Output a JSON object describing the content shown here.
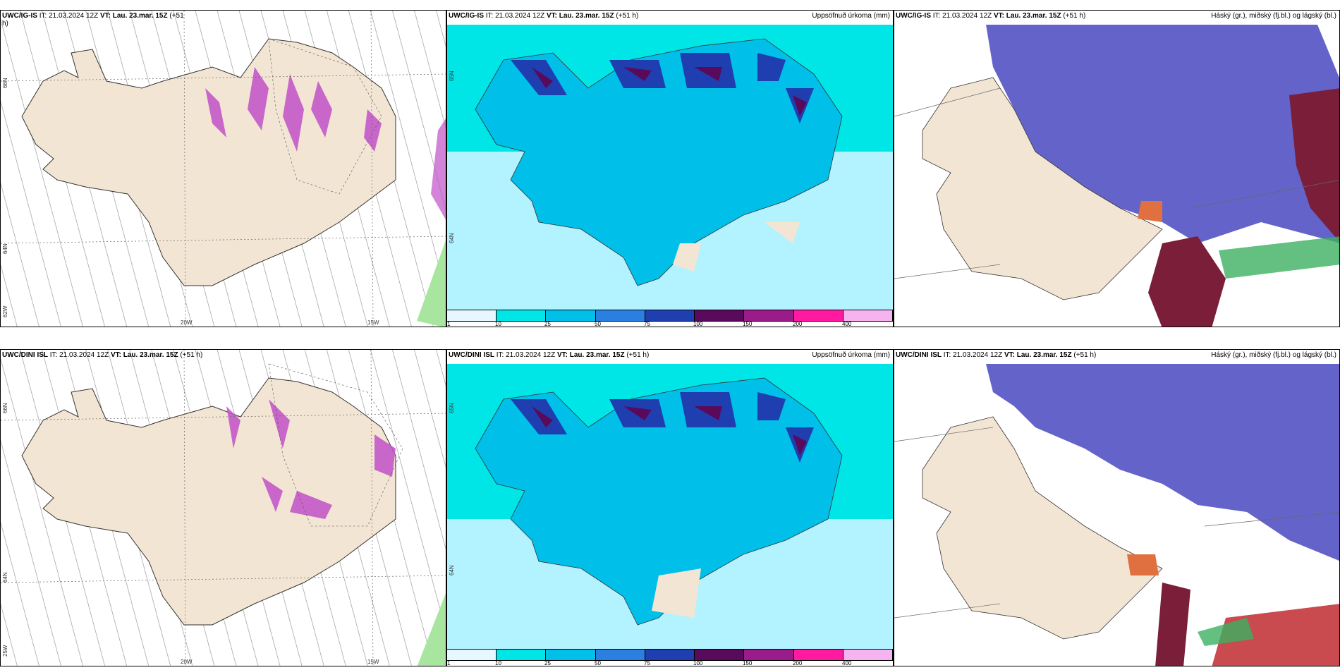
{
  "rows": [
    {
      "model": "UWC/IG-IS",
      "precip_type": {
        "title_model": "UWC/IG-IS",
        "title_rest": " IT: 21.03.2024 12Z ",
        "title_vt_label": "VT: Lau. 23.mar. 15Z",
        "title_suffix": " (+51",
        "title_suffix2": "h)",
        "lat_labels": [
          "66N",
          "64N",
          "62W"
        ],
        "lon_labels": [
          "20W",
          "15W"
        ]
      },
      "accum": {
        "title_model": "UWC/IG-IS",
        "title_rest": " IT: 21.03.2024 12Z ",
        "title_vt_label": "VT: Lau. 23.mar. 15Z",
        "title_suffix": " (+51 h)",
        "title_right": "Uppsöfnuð úrkoma (mm)",
        "lat_labels": [
          "65N",
          "64N"
        ]
      },
      "cloud": {
        "title_model": "UWC/IG-IS",
        "title_rest": " IT: 21.03.2024 12Z ",
        "title_vt_label": "VT: Lau. 23.mar. 15Z",
        "title_suffix": " (+51 h)",
        "title_right": "Háský (gr.), miðský (fj.bl.) og lágský (bl.)"
      }
    },
    {
      "model": "UWC/DINI ISL",
      "precip_type": {
        "title_model": "UWC/DINI ISL",
        "title_rest": " IT: 21.03.2024 12Z ",
        "title_vt_label": "VT: Lau. 23.mar. 15Z",
        "title_suffix": " (+51 h)",
        "title_suffix2": "",
        "lat_labels": [
          "66N",
          "64N",
          "25W"
        ],
        "lon_labels": [
          "20W",
          "15W"
        ]
      },
      "accum": {
        "title_model": "UWC/DINI ISL",
        "title_rest": " IT: 21.03.2024 12Z ",
        "title_vt_label": "VT: Lau. 23.mar. 15Z",
        "title_suffix": " (+51 h)",
        "title_right": "Uppsöfnuð úrkoma (mm)",
        "lat_labels": [
          "65N",
          "64N"
        ]
      },
      "cloud": {
        "title_model": "UWC/DINI ISL",
        "title_rest": " IT: 21.03.2024 12Z ",
        "title_vt_label": "VT: Lau. 23.mar. 15Z",
        "title_suffix": " (+51 h)",
        "title_right": "Háský (gr.), miðský (fj.bl.) og lágský (bl.)"
      }
    }
  ],
  "legend": {
    "ticks": [
      "1",
      "10",
      "25",
      "50",
      "75",
      "100",
      "150",
      "200",
      "400"
    ],
    "colors": [
      "#e6f7ff",
      "#00e5e5",
      "#00bfe8",
      "#2a7fe0",
      "#1f3fb0",
      "#5a0a5a",
      "#9a1c8a",
      "#ff1aa0",
      "#f5b3f0"
    ]
  },
  "colors": {
    "land": "#f3e5d3",
    "ocean_accum": "#b3f2ff",
    "cloud_low": "#6463c9",
    "cloud_mid": "#7a1e3a",
    "purple_precip": "#c050c8"
  }
}
